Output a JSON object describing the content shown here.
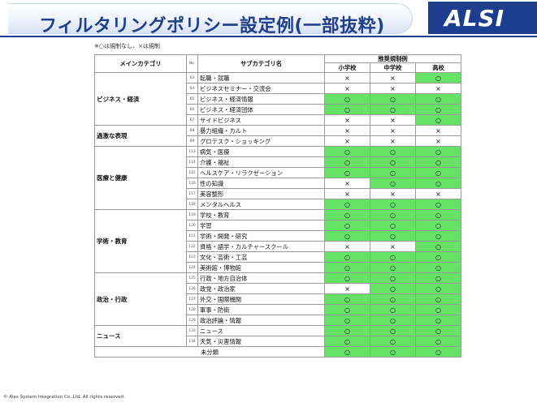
{
  "header": {
    "title": "フィルタリングポリシー設定例(一部抜粋)",
    "logo": "ALSI"
  },
  "note": "※○は規制なし、×は規制",
  "table": {
    "col_main": "メインカテゴリ",
    "col_no": "No.",
    "col_sub": "サブカテゴリ名",
    "col_group": "推奨規制例",
    "col_elem": "小学校",
    "col_mid": "中学校",
    "col_high": "高校",
    "groups": [
      {
        "name": "ビジネス・経済",
        "rows": [
          {
            "no": "63",
            "sub": "転職・就職",
            "e": "×",
            "m": "×",
            "h": "○"
          },
          {
            "no": "64",
            "sub": "ビジネスセミナー・交流会",
            "e": "×",
            "m": "×",
            "h": "×"
          },
          {
            "no": "65",
            "sub": "ビジネス・経済情報",
            "e": "○",
            "m": "○",
            "h": "○"
          },
          {
            "no": "66",
            "sub": "ビジネス・経済団体",
            "e": "○",
            "m": "○",
            "h": "○"
          },
          {
            "no": "67",
            "sub": "サイドビジネス",
            "e": "×",
            "m": "×",
            "h": "○"
          }
        ]
      },
      {
        "name": "過激な表現",
        "rows": [
          {
            "no": "68",
            "sub": "暴力組織・カルト",
            "e": "×",
            "m": "×",
            "h": "×"
          },
          {
            "no": "69",
            "sub": "グロテスク・ショッキング",
            "e": "×",
            "m": "×",
            "h": "×"
          }
        ]
      },
      {
        "name": "医療と健康",
        "rows": [
          {
            "no": "113",
            "sub": "病気・医療",
            "e": "○",
            "m": "○",
            "h": "○"
          },
          {
            "no": "114",
            "sub": "介護・福祉",
            "e": "○",
            "m": "○",
            "h": "○"
          },
          {
            "no": "115",
            "sub": "ヘルスケア・リラクゼーション",
            "e": "○",
            "m": "○",
            "h": "○"
          },
          {
            "no": "116",
            "sub": "性の知識",
            "e": "×",
            "m": "○",
            "h": "○"
          },
          {
            "no": "117",
            "sub": "美容整形",
            "e": "×",
            "m": "×",
            "h": "×"
          },
          {
            "no": "118",
            "sub": "メンタルヘルス",
            "e": "○",
            "m": "○",
            "h": "○"
          }
        ]
      },
      {
        "name": "学術・教育",
        "rows": [
          {
            "no": "119",
            "sub": "学校・教育",
            "e": "○",
            "m": "○",
            "h": "○"
          },
          {
            "no": "120",
            "sub": "学習",
            "e": "○",
            "m": "○",
            "h": "○"
          },
          {
            "no": "121",
            "sub": "学術・開発・研究",
            "e": "○",
            "m": "○",
            "h": "○"
          },
          {
            "no": "122",
            "sub": "資格・語学・カルチャースクール",
            "e": "×",
            "m": "×",
            "h": "○"
          },
          {
            "no": "123",
            "sub": "文化・芸術・工芸",
            "e": "○",
            "m": "○",
            "h": "○"
          },
          {
            "no": "124",
            "sub": "美術館・博物館",
            "e": "○",
            "m": "○",
            "h": "○"
          }
        ]
      },
      {
        "name": "政治・行政",
        "rows": [
          {
            "no": "125",
            "sub": "行政・地方自治体",
            "e": "○",
            "m": "○",
            "h": "○"
          },
          {
            "no": "126",
            "sub": "政党・政治家",
            "e": "×",
            "m": "○",
            "h": "○"
          },
          {
            "no": "127",
            "sub": "外交・国際機関",
            "e": "○",
            "m": "○",
            "h": "○"
          },
          {
            "no": "128",
            "sub": "軍事・防衛",
            "e": "○",
            "m": "○",
            "h": "○"
          },
          {
            "no": "129",
            "sub": "政治評論・情報",
            "e": "○",
            "m": "○",
            "h": "○"
          }
        ]
      },
      {
        "name": "ニュース",
        "rows": [
          {
            "no": "133",
            "sub": "ニュース",
            "e": "○",
            "m": "○",
            "h": "○"
          },
          {
            "no": "134",
            "sub": "天気・災害情報",
            "e": "○",
            "m": "○",
            "h": "○"
          }
        ]
      }
    ],
    "unclassified": {
      "label": "未分類",
      "e": "○",
      "m": "○",
      "h": "○"
    }
  },
  "colors": {
    "allowed": "#66e366",
    "blocked": "#ffffff",
    "brand": "#1d3d8f"
  },
  "footer": "© Alps System Integration Co.,Ltd. All rights reserved."
}
